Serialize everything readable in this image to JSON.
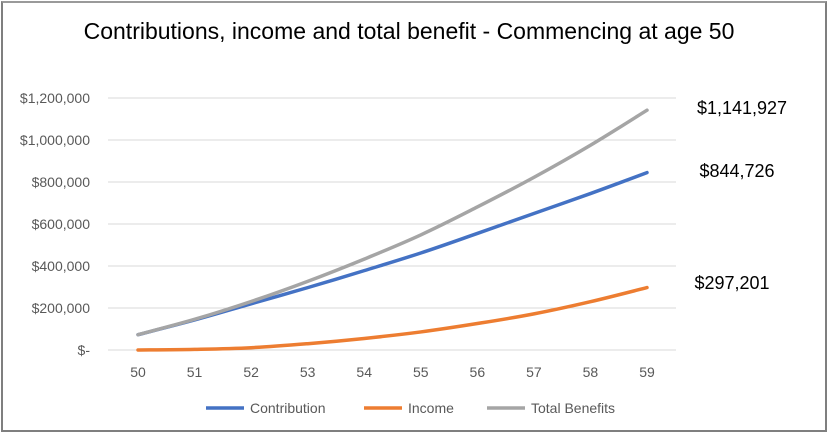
{
  "chart_data": {
    "type": "line",
    "title": "Contributions, income and total benefit - Commencing at age 50",
    "xlabel": "",
    "ylabel": "",
    "x": [
      "50",
      "51",
      "52",
      "53",
      "54",
      "55",
      "56",
      "57",
      "58",
      "59"
    ],
    "ylim": [
      0,
      1200000
    ],
    "y_ticks": [
      0,
      200000,
      400000,
      600000,
      800000,
      1000000,
      1200000
    ],
    "y_tick_labels": [
      "$-",
      "$200,000",
      "$400,000",
      "$600,000",
      "$800,000",
      "$1,000,000",
      "$1,200,000"
    ],
    "grid": true,
    "legend_position": "bottom",
    "series": [
      {
        "name": "Contribution",
        "color": "#4472c4",
        "values": [
          73000,
          143000,
          220000,
          297000,
          378000,
          462000,
          555000,
          650000,
          745000,
          844726
        ]
      },
      {
        "name": "Income",
        "color": "#ed7d31",
        "values": [
          0,
          3000,
          11000,
          30000,
          55000,
          86000,
          126000,
          172000,
          230000,
          297201
        ]
      },
      {
        "name": "Total Benefits",
        "color": "#a5a5a5",
        "values": [
          73000,
          146000,
          231000,
          327000,
          433000,
          548000,
          681000,
          822000,
          975000,
          1141927
        ]
      }
    ],
    "annotations": [
      {
        "series": "Total Benefits",
        "text": "$1,141,927"
      },
      {
        "series": "Contribution",
        "text": "$844,726"
      },
      {
        "series": "Income",
        "text": "$297,201"
      }
    ]
  }
}
